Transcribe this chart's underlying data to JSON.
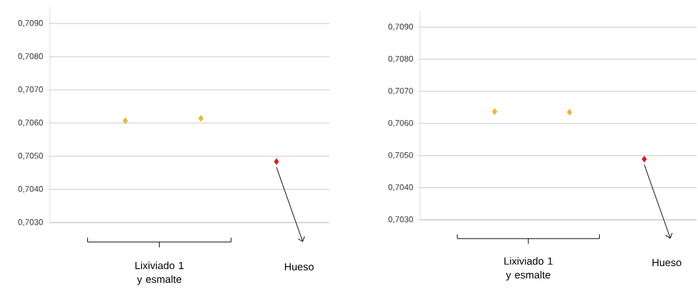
{
  "chart_data": [
    {
      "type": "scatter",
      "categories": [
        null,
        null,
        null
      ],
      "values": [
        0.70607,
        0.70614,
        0.70484
      ],
      "colors": [
        "#f0b820",
        "#f0b820",
        "#e8101a"
      ],
      "marker": "diamond",
      "grid": "y",
      "ylim": [
        0.703,
        0.7095
      ],
      "yticks": [
        {
          "value": 0.703,
          "label": "0,7030"
        },
        {
          "value": 0.704,
          "label": "0,7040"
        },
        {
          "value": 0.705,
          "label": "0,7050"
        },
        {
          "value": 0.706,
          "label": "0,7060"
        },
        {
          "value": 0.707,
          "label": "0,7070"
        },
        {
          "value": 0.708,
          "label": "0,7080"
        },
        {
          "value": 0.709,
          "label": "0,7090"
        }
      ],
      "annotations": [
        "Lixiviado 1 y esmalte",
        "Hueso"
      ]
    },
    {
      "type": "scatter",
      "categories": [
        null,
        null,
        null
      ],
      "values": [
        0.70637,
        0.70635,
        0.70489
      ],
      "colors": [
        "#f0b820",
        "#f0b820",
        "#e8101a"
      ],
      "marker": "diamond",
      "grid": "y",
      "ylim": [
        0.703,
        0.7095
      ],
      "yticks": [
        {
          "value": 0.703,
          "label": "0,7030"
        },
        {
          "value": 0.704,
          "label": "0,7040"
        },
        {
          "value": 0.705,
          "label": "0,7050"
        },
        {
          "value": 0.706,
          "label": "0,7060"
        },
        {
          "value": 0.707,
          "label": "0,7070"
        },
        {
          "value": 0.708,
          "label": "0,7080"
        },
        {
          "value": 0.709,
          "label": "0,7090"
        }
      ],
      "annotations": [
        "Lixiviado 1 y esmalte",
        "Hueso"
      ]
    }
  ]
}
